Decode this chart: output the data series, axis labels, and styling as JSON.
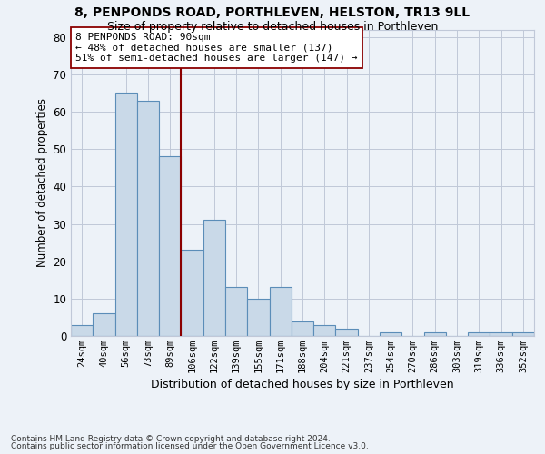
{
  "title1": "8, PENPONDS ROAD, PORTHLEVEN, HELSTON, TR13 9LL",
  "title2": "Size of property relative to detached houses in Porthleven",
  "xlabel": "Distribution of detached houses by size in Porthleven",
  "ylabel": "Number of detached properties",
  "categories": [
    "24sqm",
    "40sqm",
    "56sqm",
    "73sqm",
    "89sqm",
    "106sqm",
    "122sqm",
    "139sqm",
    "155sqm",
    "171sqm",
    "188sqm",
    "204sqm",
    "221sqm",
    "237sqm",
    "254sqm",
    "270sqm",
    "286sqm",
    "303sqm",
    "319sqm",
    "336sqm",
    "352sqm"
  ],
  "values": [
    3,
    6,
    65,
    63,
    48,
    23,
    31,
    13,
    10,
    13,
    4,
    3,
    2,
    0,
    1,
    0,
    1,
    0,
    1,
    1,
    1
  ],
  "bar_color": "#c9d9e8",
  "bar_edge_color": "#5b8db8",
  "vline_x": 4.5,
  "vline_color": "#8b0000",
  "annotation_text": "8 PENPONDS ROAD: 90sqm\n← 48% of detached houses are smaller (137)\n51% of semi-detached houses are larger (147) →",
  "annotation_box_color": "white",
  "annotation_box_edge": "#8b0000",
  "footer1": "Contains HM Land Registry data © Crown copyright and database right 2024.",
  "footer2": "Contains public sector information licensed under the Open Government Licence v3.0.",
  "ylim": [
    0,
    82
  ],
  "bg_color": "#edf2f8",
  "plot_bg_color": "#edf2f8",
  "grid_color": "#c0c8d8"
}
